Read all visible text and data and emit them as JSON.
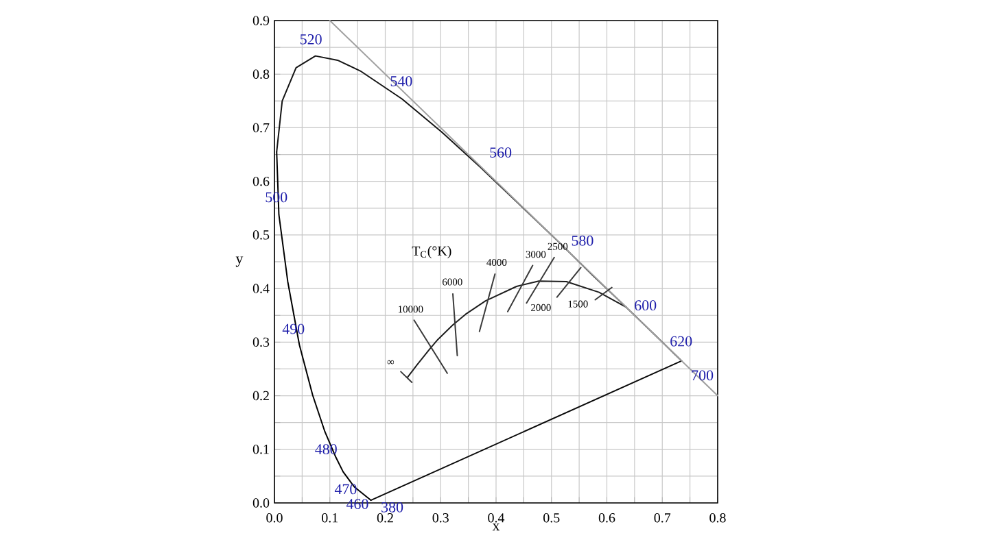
{
  "chart_data": {
    "type": "line",
    "xlabel": "x",
    "ylabel": "y",
    "xlim": [
      0,
      0.8
    ],
    "ylim": [
      0,
      0.9
    ],
    "xticks": [
      {
        "value": 0,
        "label": "0.0"
      },
      {
        "value": 0.05,
        "label": null
      },
      {
        "value": 0.1,
        "label": "0.1"
      },
      {
        "value": 0.15,
        "label": null
      },
      {
        "value": 0.2,
        "label": "0.2"
      },
      {
        "value": 0.25,
        "label": null
      },
      {
        "value": 0.3,
        "label": "0.3"
      },
      {
        "value": 0.35,
        "label": null
      },
      {
        "value": 0.4,
        "label": "0.4"
      },
      {
        "value": 0.45,
        "label": null
      },
      {
        "value": 0.5,
        "label": "0.5"
      },
      {
        "value": 0.55,
        "label": null
      },
      {
        "value": 0.6,
        "label": "0.6"
      },
      {
        "value": 0.65,
        "label": null
      },
      {
        "value": 0.7,
        "label": "0.7"
      },
      {
        "value": 0.75,
        "label": null
      },
      {
        "value": 0.8,
        "label": "0.8"
      }
    ],
    "yticks": [
      {
        "value": 0,
        "label": "0.0"
      },
      {
        "value": 0.05,
        "label": null
      },
      {
        "value": 0.1,
        "label": "0.1"
      },
      {
        "value": 0.15,
        "label": null
      },
      {
        "value": 0.2,
        "label": "0.2"
      },
      {
        "value": 0.25,
        "label": null
      },
      {
        "value": 0.3,
        "label": "0.3"
      },
      {
        "value": 0.35,
        "label": null
      },
      {
        "value": 0.4,
        "label": "0.4"
      },
      {
        "value": 0.45,
        "label": null
      },
      {
        "value": 0.5,
        "label": "0.5"
      },
      {
        "value": 0.55,
        "label": null
      },
      {
        "value": 0.6,
        "label": "0.6"
      },
      {
        "value": 0.65,
        "label": null
      },
      {
        "value": 0.7,
        "label": "0.7"
      },
      {
        "value": 0.75,
        "label": null
      },
      {
        "value": 0.8,
        "label": "0.8"
      },
      {
        "value": 0.85,
        "label": null
      },
      {
        "value": 0.9,
        "label": "0.9"
      }
    ],
    "grid": true,
    "marker": "none",
    "line_style": "solid",
    "series": [
      {
        "color": "#000000",
        "x": [
          0.174,
          0.144,
          0.124,
          0.11,
          0.091,
          0.069,
          0.045,
          0.024,
          0.008,
          0.004
        ],
        "values": [
          0.005,
          0.03,
          0.058,
          0.087,
          0.133,
          0.201,
          0.295,
          0.413,
          0.538,
          0.655
        ]
      },
      {
        "color": "#141414",
        "x": [
          0.004,
          0.014,
          0.039,
          0.074,
          0.114,
          0.155,
          0.23,
          0.302,
          0.373,
          0.444,
          0.513,
          0.575,
          0.627,
          0.692,
          0.719,
          0.735
        ],
        "values": [
          0.655,
          0.75,
          0.812,
          0.834,
          0.826,
          0.806,
          0.754,
          0.692,
          0.625,
          0.555,
          0.487,
          0.424,
          0.373,
          0.308,
          0.281,
          0.265
        ]
      },
      {
        "color": "#0a0a0a",
        "x": [
          0.174,
          0.735
        ],
        "values": [
          0.005,
          0.265
        ]
      },
      {
        "color": "#1e1e1e",
        "x": [
          0.24,
          0.257,
          0.281,
          0.295,
          0.314,
          0.322,
          0.345,
          0.381,
          0.437,
          0.477,
          0.527,
          0.586,
          0.635
        ],
        "values": [
          0.234,
          0.257,
          0.288,
          0.305,
          0.324,
          0.332,
          0.352,
          0.377,
          0.404,
          0.414,
          0.413,
          0.393,
          0.365
        ]
      },
      {
        "color": "#a0a0a0",
        "x": [
          0.1,
          0.8
        ],
        "values": [
          0.9,
          0.2
        ]
      },
      {
        "color": "#3a3a3a",
        "x": [
          0.252,
          0.312,
          null,
          0.322,
          0.33,
          null,
          0.398,
          0.37,
          null,
          0.466,
          0.421,
          null,
          0.505,
          0.455,
          null,
          0.553,
          0.51,
          null,
          0.609,
          0.579,
          null,
          0.228,
          0.248
        ],
        "values": [
          0.341,
          0.242,
          null,
          0.39,
          0.275,
          null,
          0.427,
          0.32,
          null,
          0.443,
          0.357,
          null,
          0.458,
          0.373,
          null,
          0.439,
          0.384,
          null,
          0.402,
          0.379,
          null,
          0.245,
          0.225
        ]
      }
    ],
    "annotations": [
      {
        "text": "520",
        "x": 0.074,
        "y": 0.834
      },
      {
        "text": "540",
        "x": 0.23,
        "y": 0.754
      },
      {
        "text": "560",
        "x": 0.373,
        "y": 0.625
      },
      {
        "text": "580",
        "x": 0.513,
        "y": 0.487
      },
      {
        "text": "600",
        "x": 0.627,
        "y": 0.373
      },
      {
        "text": "620",
        "x": 0.692,
        "y": 0.308
      },
      {
        "text": "700",
        "x": 0.735,
        "y": 0.265
      },
      {
        "text": "500",
        "x": 0.008,
        "y": 0.538
      },
      {
        "text": "490",
        "x": 0.045,
        "y": 0.295
      },
      {
        "text": "480",
        "x": 0.091,
        "y": 0.133
      },
      {
        "text": "470",
        "x": 0.124,
        "y": 0.058
      },
      {
        "text": "460",
        "x": 0.144,
        "y": 0.03
      },
      {
        "text": "380",
        "x": 0.174,
        "y": 0.005
      },
      {
        "text": "10000",
        "x": 0.252,
        "y": 0.341
      },
      {
        "text": "6000",
        "x": 0.322,
        "y": 0.39
      },
      {
        "text": "4000",
        "x": 0.398,
        "y": 0.427
      },
      {
        "text": "3000",
        "x": 0.466,
        "y": 0.443
      },
      {
        "text": "2500",
        "x": 0.505,
        "y": 0.458
      },
      {
        "text": "2000",
        "x": 0.51,
        "y": 0.384
      },
      {
        "text": "1500",
        "x": 0.579,
        "y": 0.379
      },
      "T$_{C}$(°K)",
      {
        "text": "∞",
        "x": 0.228,
        "y": 0.245
      }
    ]
  }
}
